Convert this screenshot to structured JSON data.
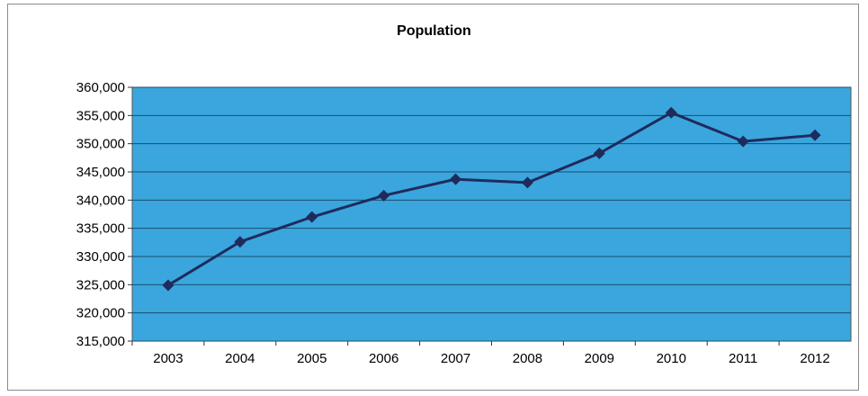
{
  "chart_data": {
    "type": "line",
    "title": "Population",
    "xlabel": "",
    "ylabel": "",
    "categories": [
      "2003",
      "2004",
      "2005",
      "2006",
      "2007",
      "2008",
      "2009",
      "2010",
      "2011",
      "2012"
    ],
    "series": [
      {
        "values": [
          324900,
          332600,
          337000,
          340800,
          343700,
          343100,
          348300,
          355500,
          350400,
          351500
        ]
      }
    ],
    "ylim": [
      315000,
      360000
    ],
    "ytick_step": 5000,
    "ytick_labels": [
      "315,000",
      "320,000",
      "325,000",
      "330,000",
      "335,000",
      "340,000",
      "345,000",
      "350,000",
      "355,000",
      "360,000"
    ],
    "grid": true,
    "legend": "none",
    "colors": {
      "plot_background": "#3aa6dd",
      "gridline": "#1b4e6e",
      "line": "#1f2b5c",
      "marker": "#1f2b5c"
    }
  }
}
